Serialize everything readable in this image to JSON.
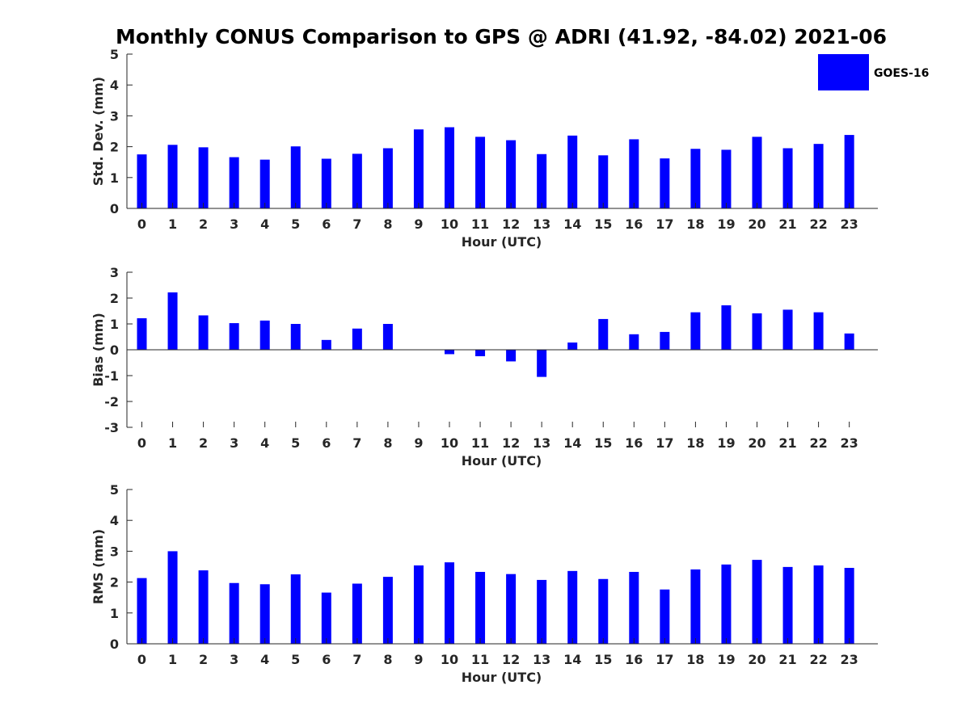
{
  "figure": {
    "title": "Monthly CONUS Comparison to GPS @ ADRI (41.92, -84.02) 2021-06",
    "legend_label": "GOES-16",
    "legend_placement": "top-right",
    "bar_color": "#0000ff"
  },
  "chart_data": [
    {
      "type": "bar",
      "xlabel": "Hour (UTC)",
      "ylabel": "Std. Dev. (mm)",
      "ylim": [
        0,
        5
      ],
      "yticks": [
        0,
        1,
        2,
        3,
        4,
        5
      ],
      "grid": false,
      "categories": [
        "0",
        "1",
        "2",
        "3",
        "4",
        "5",
        "6",
        "7",
        "8",
        "9",
        "10",
        "11",
        "12",
        "13",
        "14",
        "15",
        "16",
        "17",
        "18",
        "19",
        "20",
        "21",
        "22",
        "23"
      ],
      "series": [
        {
          "name": "GOES-16",
          "values": [
            1.75,
            2.06,
            1.98,
            1.66,
            1.58,
            2.01,
            1.61,
            1.77,
            1.95,
            2.56,
            2.63,
            2.32,
            2.21,
            1.76,
            2.36,
            1.72,
            2.24,
            1.62,
            1.93,
            1.9,
            2.32,
            1.95,
            2.09,
            2.38
          ]
        }
      ]
    },
    {
      "type": "bar",
      "xlabel": "Hour (UTC)",
      "ylabel": "Bias (mm)",
      "ylim": [
        -3,
        3
      ],
      "yticks": [
        -3,
        -2,
        -1,
        0,
        1,
        2,
        3
      ],
      "grid": false,
      "categories": [
        "0",
        "1",
        "2",
        "3",
        "4",
        "5",
        "6",
        "7",
        "8",
        "9",
        "10",
        "11",
        "12",
        "13",
        "14",
        "15",
        "16",
        "17",
        "18",
        "19",
        "20",
        "21",
        "22",
        "23"
      ],
      "series": [
        {
          "name": "GOES-16",
          "values": [
            1.22,
            2.22,
            1.33,
            1.03,
            1.13,
            1.0,
            0.38,
            0.82,
            1.0,
            0.01,
            -0.17,
            -0.25,
            -0.45,
            -1.05,
            0.28,
            1.19,
            0.6,
            0.69,
            1.45,
            1.72,
            1.41,
            1.55,
            1.45,
            0.63
          ]
        }
      ]
    },
    {
      "type": "bar",
      "xlabel": "Hour (UTC)",
      "ylabel": "RMS (mm)",
      "ylim": [
        0,
        5
      ],
      "yticks": [
        0,
        1,
        2,
        3,
        4,
        5
      ],
      "grid": false,
      "categories": [
        "0",
        "1",
        "2",
        "3",
        "4",
        "5",
        "6",
        "7",
        "8",
        "9",
        "10",
        "11",
        "12",
        "13",
        "14",
        "15",
        "16",
        "17",
        "18",
        "19",
        "20",
        "21",
        "22",
        "23"
      ],
      "series": [
        {
          "name": "GOES-16",
          "values": [
            2.13,
            3.0,
            2.38,
            1.97,
            1.93,
            2.25,
            1.66,
            1.95,
            2.17,
            2.54,
            2.64,
            2.33,
            2.26,
            2.07,
            2.36,
            2.1,
            2.33,
            1.76,
            2.41,
            2.57,
            2.72,
            2.49,
            2.54,
            2.46
          ]
        }
      ]
    }
  ]
}
